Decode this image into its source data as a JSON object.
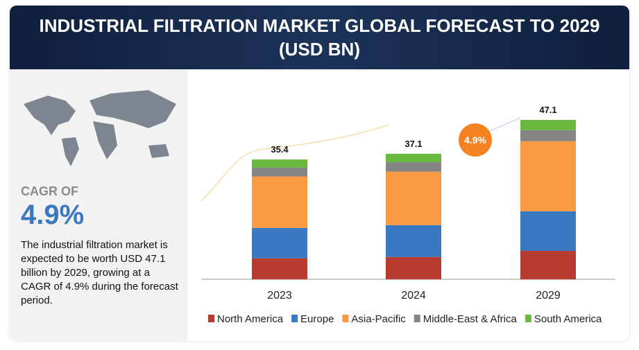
{
  "chart_data": {
    "type": "stacked-bar",
    "title": "INDUSTRIAL FILTRATION MARKET GLOBAL FORECAST TO 2029 (USD BN)",
    "categories": [
      "2023",
      "2024",
      "2029"
    ],
    "series": [
      {
        "name": "North America",
        "color": "#b83b30",
        "values": [
          6.2,
          6.6,
          8.4
        ]
      },
      {
        "name": "Europe",
        "color": "#3a78c2",
        "values": [
          9.0,
          9.4,
          11.7
        ]
      },
      {
        "name": "Asia-Pacific",
        "color": "#f79a43",
        "values": [
          15.2,
          15.8,
          20.7
        ]
      },
      {
        "name": "Middle-East & Africa",
        "color": "#858585",
        "values": [
          2.6,
          2.8,
          3.3
        ]
      },
      {
        "name": "South America",
        "color": "#6ab83d",
        "values": [
          2.4,
          2.5,
          3.0
        ]
      }
    ],
    "totals": [
      35.4,
      37.1,
      47.1
    ],
    "cagr_bubble": {
      "value": 4.9,
      "label": "4.9%"
    },
    "legend": "bottom"
  },
  "side_panel": {
    "cagr_label": "CAGR OF",
    "cagr_value": "4.9%",
    "description": "The industrial filtration market is expected to be worth USD 47.1 billion by 2029, growing at a CAGR of 4.9% during the forecast period."
  }
}
